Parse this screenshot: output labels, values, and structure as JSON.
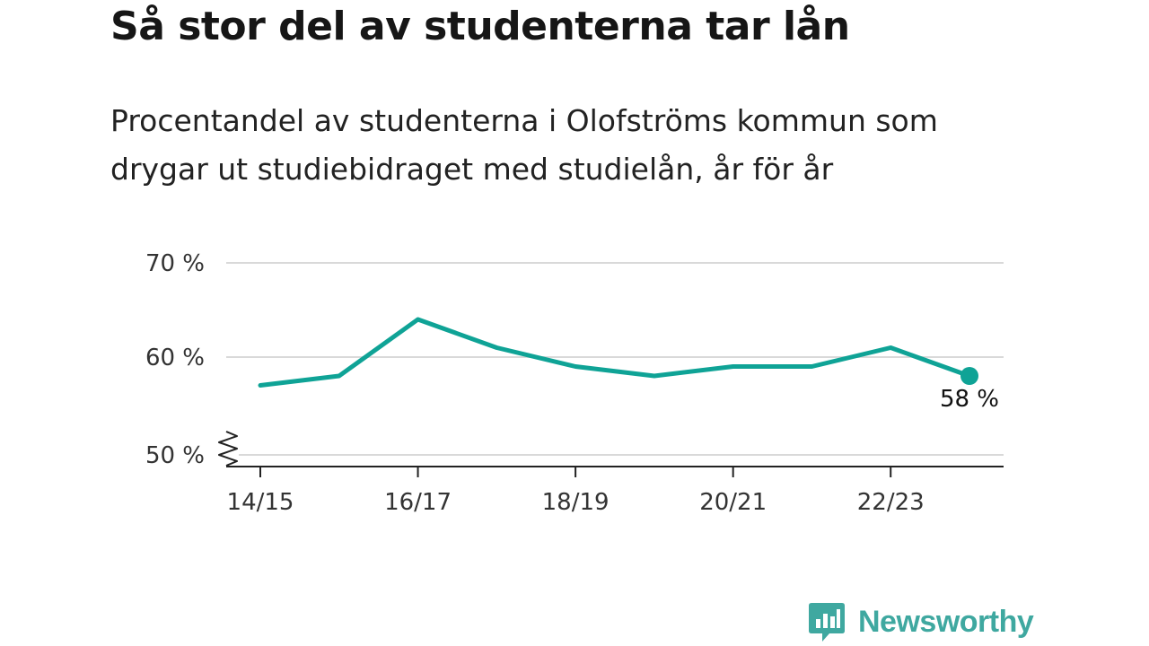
{
  "title": "Så stor del av studenterna tar lån",
  "subtitle": "Procentandel av studenterna i Olofströms kommun som drygar ut studiebidraget med studielån, år för år",
  "brand": {
    "name": "Newsworthy",
    "color": "#3fa8a0",
    "icon": "newsworthy-chart-bubble-icon"
  },
  "colors": {
    "line": "#0fa396",
    "grid": "#d9d9d9",
    "axis": "#222222"
  },
  "chart_data": {
    "type": "line",
    "x": [
      "14/15",
      "15/16",
      "16/17",
      "17/18",
      "18/19",
      "19/20",
      "20/21",
      "21/22",
      "22/23",
      "23/24"
    ],
    "x_tick_labels": [
      "14/15",
      "16/17",
      "18/19",
      "20/21",
      "22/23"
    ],
    "series": [
      {
        "values": [
          57,
          58,
          64,
          61,
          59,
          58,
          59,
          59,
          61,
          58
        ]
      }
    ],
    "y_ticks": [
      50,
      60,
      70
    ],
    "y_tick_labels": [
      "50 %",
      "60 %",
      "70 %"
    ],
    "ylim": [
      50,
      70
    ],
    "y_axis_break": true,
    "end_label": "58 %",
    "grid": true,
    "xlabel": "",
    "ylabel": ""
  }
}
